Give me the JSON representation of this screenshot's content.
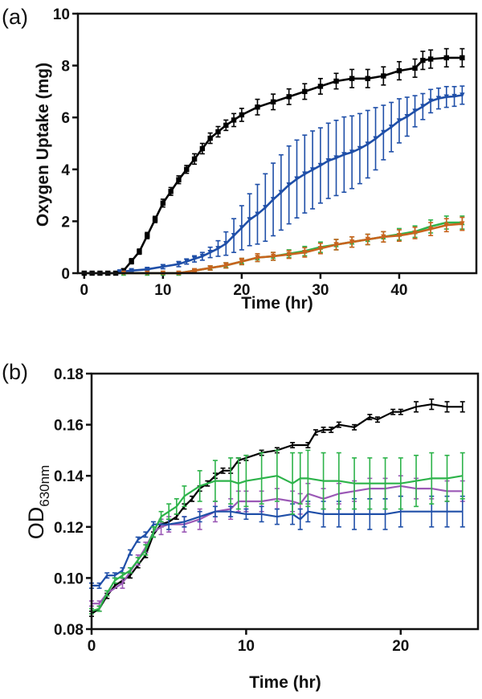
{
  "chart_data": [
    {
      "type": "line",
      "panel_label": "(a)",
      "xlabel": "Time (hr)",
      "ylabel": "Oxygen Uptake (mg)",
      "xlim": [
        -0.8,
        49.8
      ],
      "ylim": [
        0,
        10
      ],
      "xticks": [
        "0",
        "10",
        "20",
        "30",
        "40"
      ],
      "yticks": [
        "0",
        "2",
        "4",
        "6",
        "8",
        "10"
      ],
      "grid": false,
      "error_bars": true,
      "series": [
        {
          "color": "#000000",
          "marker": "square",
          "x": [
            0,
            1,
            2,
            3,
            4,
            5,
            6,
            7,
            8,
            9,
            10,
            11,
            12,
            13,
            14,
            15,
            16,
            17,
            18,
            19,
            20,
            22,
            24,
            26,
            28,
            30,
            32,
            34,
            36,
            38,
            40,
            42,
            43,
            44,
            46,
            48
          ],
          "y": [
            0,
            0,
            0,
            0,
            0,
            0.1,
            0.46,
            0.83,
            1.45,
            2.07,
            2.7,
            3.15,
            3.6,
            4.0,
            4.4,
            4.8,
            5.2,
            5.45,
            5.7,
            5.9,
            6.1,
            6.4,
            6.6,
            6.8,
            7.0,
            7.2,
            7.4,
            7.5,
            7.5,
            7.6,
            7.8,
            7.9,
            8.2,
            8.25,
            8.3,
            8.3
          ],
          "err": [
            0.05,
            0.05,
            0.05,
            0.05,
            0.05,
            0.05,
            0.1,
            0.1,
            0.12,
            0.12,
            0.15,
            0.15,
            0.15,
            0.15,
            0.2,
            0.2,
            0.2,
            0.2,
            0.2,
            0.25,
            0.25,
            0.3,
            0.3,
            0.3,
            0.3,
            0.3,
            0.3,
            0.35,
            0.35,
            0.35,
            0.35,
            0.35,
            0.35,
            0.35,
            0.35,
            0.35
          ]
        },
        {
          "color": "#1f4fa8",
          "marker": "triangle-down",
          "x": [
            4.5,
            6,
            8,
            10,
            12,
            13,
            14,
            15,
            16,
            17,
            18,
            19,
            20,
            21,
            22,
            23,
            24,
            25,
            26,
            27,
            28,
            29,
            30,
            31,
            32,
            33,
            34,
            35,
            36,
            37,
            38,
            39,
            40,
            41,
            42,
            43,
            44,
            45,
            46,
            47,
            48
          ],
          "y": [
            0.05,
            0.1,
            0.15,
            0.25,
            0.35,
            0.45,
            0.55,
            0.65,
            0.8,
            0.95,
            1.14,
            1.45,
            1.75,
            2.06,
            2.27,
            2.53,
            2.84,
            3.11,
            3.4,
            3.63,
            3.82,
            3.98,
            4.15,
            4.33,
            4.44,
            4.57,
            4.66,
            4.8,
            4.97,
            5.18,
            5.42,
            5.63,
            5.87,
            6.03,
            6.24,
            6.42,
            6.63,
            6.73,
            6.79,
            6.81,
            6.86
          ],
          "err": [
            0.05,
            0.05,
            0.05,
            0.08,
            0.1,
            0.1,
            0.12,
            0.15,
            0.2,
            0.3,
            0.45,
            0.65,
            0.85,
            1.0,
            1.15,
            1.3,
            1.4,
            1.45,
            1.5,
            1.5,
            1.5,
            1.5,
            1.45,
            1.45,
            1.45,
            1.45,
            1.4,
            1.35,
            1.3,
            1.2,
            1.05,
            0.95,
            0.85,
            0.75,
            0.6,
            0.5,
            0.45,
            0.4,
            0.4,
            0.38,
            0.35
          ]
        },
        {
          "color": "#2db34a",
          "marker": "triangle-up",
          "x": [
            5,
            8,
            10,
            12,
            14,
            16,
            18,
            20,
            22,
            24,
            26,
            28,
            30,
            32,
            34,
            36,
            38,
            40,
            42,
            44,
            46,
            48
          ],
          "y": [
            0,
            0,
            0,
            0,
            0.1,
            0.2,
            0.3,
            0.45,
            0.6,
            0.65,
            0.75,
            0.85,
            1.0,
            1.1,
            1.2,
            1.3,
            1.4,
            1.5,
            1.6,
            1.8,
            1.95,
            1.95
          ],
          "err": [
            0.02,
            0.02,
            0.03,
            0.04,
            0.05,
            0.08,
            0.1,
            0.12,
            0.15,
            0.15,
            0.15,
            0.18,
            0.2,
            0.2,
            0.2,
            0.2,
            0.2,
            0.22,
            0.22,
            0.25,
            0.25,
            0.25
          ]
        },
        {
          "color": "#c8641e",
          "marker": "triangle-down",
          "x": [
            5,
            8,
            10,
            12,
            14,
            16,
            18,
            20,
            22,
            24,
            26,
            28,
            30,
            32,
            34,
            36,
            38,
            40,
            42,
            44,
            46,
            48
          ],
          "y": [
            0,
            0,
            0,
            0,
            0.1,
            0.2,
            0.3,
            0.45,
            0.6,
            0.65,
            0.72,
            0.8,
            0.95,
            1.1,
            1.2,
            1.3,
            1.4,
            1.45,
            1.55,
            1.7,
            1.85,
            1.9
          ],
          "err": [
            0.02,
            0.02,
            0.03,
            0.04,
            0.05,
            0.08,
            0.1,
            0.12,
            0.15,
            0.15,
            0.15,
            0.18,
            0.2,
            0.2,
            0.2,
            0.2,
            0.2,
            0.22,
            0.22,
            0.25,
            0.25,
            0.25
          ]
        }
      ]
    },
    {
      "type": "line",
      "panel_label": "(b)",
      "xlabel": "Time (hr)",
      "ylabel": "OD",
      "ylabel_sub": "630nm",
      "xlim": [
        0,
        25
      ],
      "ylim": [
        0.08,
        0.18
      ],
      "xticks": [
        "0",
        "10",
        "20"
      ],
      "yticks": [
        "0.08",
        "0.10",
        "0.12",
        "0.14",
        "0.16",
        "0.18"
      ],
      "grid": false,
      "error_bars": true,
      "series": [
        {
          "color": "#000000",
          "x": [
            0,
            0.5,
            1,
            1.5,
            2,
            2.5,
            3,
            3.5,
            4,
            4.5,
            5,
            5.5,
            6,
            6.5,
            7,
            7.5,
            8,
            8.5,
            9,
            9.5,
            10,
            11,
            12,
            13,
            14,
            14.5,
            15,
            15.5,
            16,
            17,
            18,
            18.5,
            19.5,
            20,
            21,
            22,
            23,
            24
          ],
          "y": [
            0.086,
            0.088,
            0.093,
            0.097,
            0.099,
            0.101,
            0.105,
            0.109,
            0.117,
            0.121,
            0.122,
            0.124,
            0.128,
            0.131,
            0.135,
            0.137,
            0.14,
            0.142,
            0.142,
            0.146,
            0.147,
            0.149,
            0.15,
            0.152,
            0.152,
            0.157,
            0.158,
            0.158,
            0.16,
            0.159,
            0.163,
            0.162,
            0.165,
            0.165,
            0.167,
            0.168,
            0.167,
            0.167
          ],
          "err": [
            0.001,
            0.001,
            0.001,
            0.001,
            0.001,
            0.001,
            0.001,
            0.001,
            0.001,
            0.001,
            0.001,
            0.001,
            0.001,
            0.001,
            0.001,
            0.001,
            0.001,
            0.001,
            0.001,
            0.001,
            0.001,
            0.001,
            0.001,
            0.001,
            0.001,
            0.001,
            0.001,
            0.001,
            0.001,
            0.001,
            0.001,
            0.001,
            0.001,
            0.001,
            0.002,
            0.002,
            0.002,
            0.002
          ]
        },
        {
          "color": "#9b59b6",
          "x": [
            0,
            0.5,
            1,
            2,
            3,
            3.5,
            4,
            4.5,
            5,
            6,
            7,
            8,
            9,
            9.5,
            10,
            11,
            12,
            13,
            13.5,
            14,
            15,
            16,
            17,
            18,
            19,
            20,
            21,
            22,
            23,
            24
          ],
          "y": [
            0.09,
            0.09,
            0.094,
            0.098,
            0.107,
            0.112,
            0.118,
            0.12,
            0.121,
            0.121,
            0.123,
            0.126,
            0.127,
            0.13,
            0.13,
            0.13,
            0.131,
            0.13,
            0.129,
            0.133,
            0.131,
            0.133,
            0.134,
            0.135,
            0.135,
            0.136,
            0.135,
            0.135,
            0.134,
            0.134
          ],
          "err": [
            0.001,
            0.001,
            0.001,
            0.002,
            0.002,
            0.002,
            0.002,
            0.003,
            0.003,
            0.003,
            0.004,
            0.004,
            0.004,
            0.004,
            0.004,
            0.004,
            0.004,
            0.004,
            0.004,
            0.004,
            0.004,
            0.004,
            0.004,
            0.004,
            0.004,
            0.004,
            0.004,
            0.004,
            0.004,
            0.004
          ]
        },
        {
          "color": "#1f4fa8",
          "x": [
            0,
            0.5,
            1,
            1.5,
            2,
            2.5,
            3,
            3.5,
            4,
            5,
            6,
            7,
            8,
            9,
            10,
            11,
            12,
            13,
            13.5,
            14,
            15,
            16,
            17,
            18,
            19,
            20,
            22,
            23,
            24
          ],
          "y": [
            0.097,
            0.097,
            0.101,
            0.101,
            0.103,
            0.11,
            0.115,
            0.117,
            0.121,
            0.121,
            0.122,
            0.124,
            0.126,
            0.126,
            0.125,
            0.125,
            0.124,
            0.125,
            0.123,
            0.126,
            0.125,
            0.125,
            0.125,
            0.125,
            0.125,
            0.126,
            0.126,
            0.126,
            0.126
          ],
          "err": [
            0.001,
            0.001,
            0.001,
            0.001,
            0.001,
            0.001,
            0.001,
            0.001,
            0.001,
            0.002,
            0.002,
            0.002,
            0.002,
            0.002,
            0.002,
            0.003,
            0.003,
            0.004,
            0.004,
            0.004,
            0.005,
            0.005,
            0.006,
            0.006,
            0.006,
            0.006,
            0.006,
            0.006,
            0.006
          ]
        },
        {
          "color": "#2db34a",
          "x": [
            0,
            0.5,
            1,
            1.5,
            2,
            2.5,
            3,
            3.5,
            4,
            4.5,
            5,
            5.5,
            6,
            7,
            8,
            9,
            9.5,
            10,
            11,
            12,
            13,
            13.5,
            14,
            15,
            16,
            17,
            18,
            19,
            20,
            21,
            22,
            23,
            24
          ],
          "y": [
            0.087,
            0.088,
            0.094,
            0.099,
            0.101,
            0.103,
            0.107,
            0.111,
            0.118,
            0.124,
            0.126,
            0.128,
            0.132,
            0.136,
            0.138,
            0.138,
            0.137,
            0.138,
            0.139,
            0.14,
            0.137,
            0.139,
            0.139,
            0.138,
            0.138,
            0.137,
            0.137,
            0.137,
            0.137,
            0.138,
            0.139,
            0.139,
            0.14
          ],
          "err": [
            0.001,
            0.001,
            0.001,
            0.001,
            0.001,
            0.001,
            0.001,
            0.002,
            0.002,
            0.002,
            0.003,
            0.003,
            0.004,
            0.006,
            0.008,
            0.009,
            0.01,
            0.01,
            0.01,
            0.01,
            0.012,
            0.01,
            0.011,
            0.011,
            0.011,
            0.01,
            0.01,
            0.01,
            0.01,
            0.01,
            0.01,
            0.009,
            0.009
          ]
        }
      ]
    }
  ]
}
